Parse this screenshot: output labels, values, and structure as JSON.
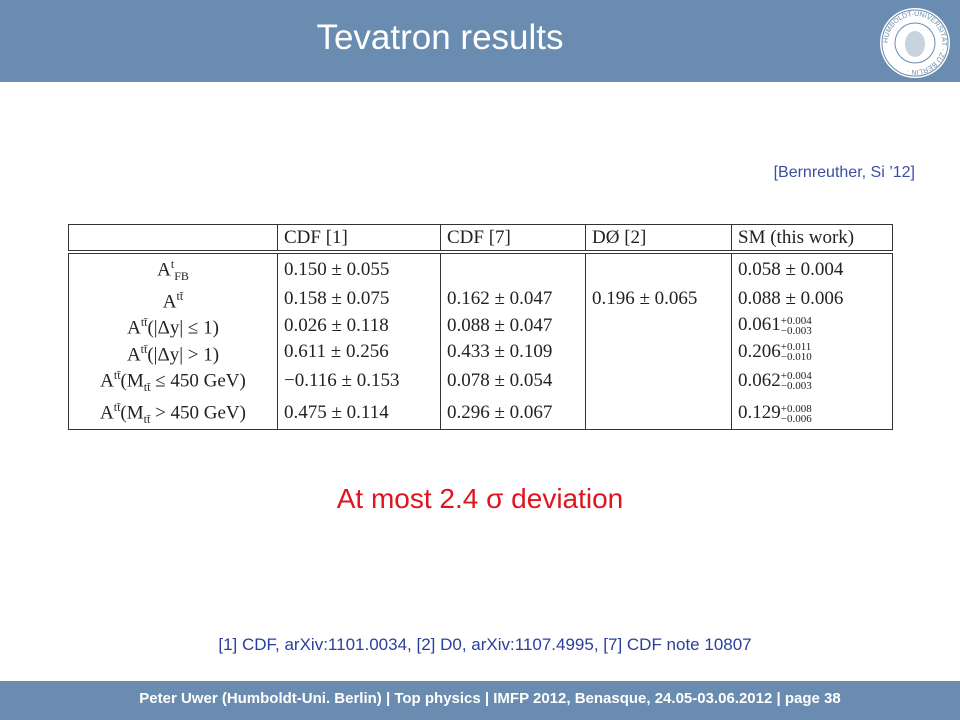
{
  "header": {
    "title": "Tevatron results",
    "logo": "HUMBOLDT-UNIVERSITÄT · ZU BERLIN ·"
  },
  "citation": "[Bernreuther, Si ’12]",
  "table": {
    "columns": [
      "CDF [1]",
      "CDF [7]",
      "DØ [2]",
      "SM (this work)"
    ],
    "rows": [
      {
        "label": [
          {
            "t": "A"
          },
          {
            "sup": "t"
          },
          {
            "sub": "FB"
          }
        ],
        "cells": [
          "0.150 ± 0.055",
          null,
          null,
          "0.058 ± 0.004"
        ]
      },
      {
        "label": [
          {
            "t": "A"
          },
          {
            "sup": "tt̄"
          }
        ],
        "cells": [
          "0.158 ± 0.075",
          "0.162 ± 0.047",
          "0.196 ± 0.065",
          "0.088 ± 0.006"
        ]
      },
      {
        "label": [
          {
            "t": "A"
          },
          {
            "sup": "tt̄"
          },
          {
            "t": "(|Δy| ≤ 1)"
          }
        ],
        "cells": [
          "0.026 ± 0.118",
          "0.088 ± 0.047",
          null,
          {
            "value": "0.061",
            "plus": "+0.004",
            "minus": "−0.003"
          }
        ]
      },
      {
        "label": [
          {
            "t": "A"
          },
          {
            "sup": "tt̄"
          },
          {
            "t": "(|Δy| > 1)"
          }
        ],
        "cells": [
          "0.611 ± 0.256",
          "0.433 ± 0.109",
          null,
          {
            "value": "0.206",
            "plus": "+0.011",
            "minus": "−0.010"
          }
        ]
      },
      {
        "label": [
          {
            "t": "A"
          },
          {
            "sup": "tt̄"
          },
          {
            "t": "(M"
          },
          {
            "sub": "tt̄"
          },
          {
            "t": " ≤ 450 GeV)"
          }
        ],
        "cells": [
          "−0.116 ± 0.153",
          "0.078 ± 0.054",
          null,
          {
            "value": "0.062",
            "plus": "+0.004",
            "minus": "−0.003"
          }
        ]
      },
      {
        "label": [
          {
            "t": "A"
          },
          {
            "sup": "tt̄"
          },
          {
            "t": "(M"
          },
          {
            "sub": "tt̄"
          },
          {
            "t": " > 450 GeV)"
          }
        ],
        "cells": [
          "0.475 ± 0.114",
          "0.296 ± 0.067",
          null,
          {
            "value": "0.129",
            "plus": "+0.008",
            "minus": "−0.006"
          }
        ]
      }
    ]
  },
  "statement": "At most 2.4 σ deviation",
  "references": "[1] CDF, arXiv:1101.0034, [2] D0, arXiv:1107.4995, [7] CDF note 10807",
  "footer": "Peter Uwer (Humboldt-Uni. Berlin) | Top physics | IMFP 2012, Benasque, 24.05-03.06.2012 | page 38"
}
